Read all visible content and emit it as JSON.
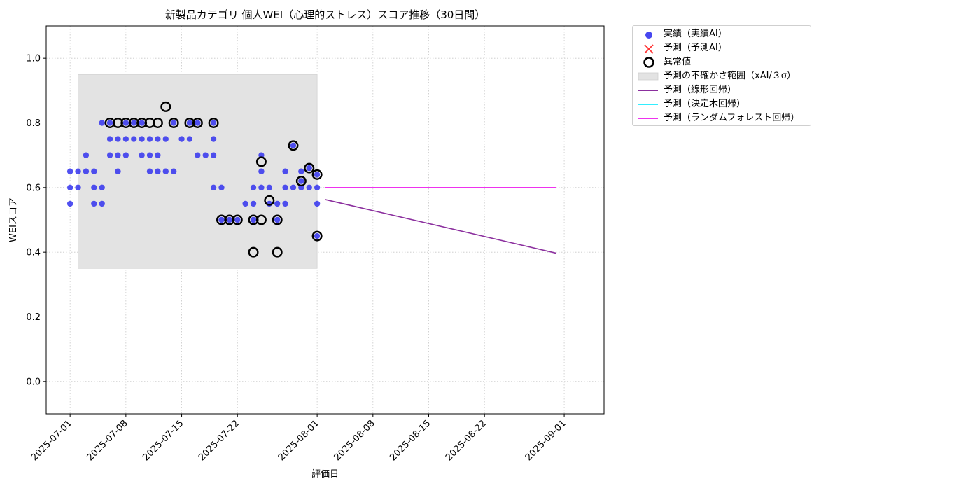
{
  "chart_data": {
    "type": "scatter",
    "title": "新製品カテゴリ 個人WEI（心理的ストレス）スコア推移（30日間）",
    "xlabel": "評価日",
    "ylabel": "WEIスコア",
    "xlim": [
      "2025-06-28",
      "2025-09-06"
    ],
    "ylim": [
      -0.1,
      1.1
    ],
    "x_ticks": [
      "2025-07-01",
      "2025-07-08",
      "2025-07-15",
      "2025-07-22",
      "2025-08-01",
      "2025-08-08",
      "2025-08-15",
      "2025-08-22",
      "2025-09-01"
    ],
    "y_ticks": [
      "0.0",
      "0.2",
      "0.4",
      "0.6",
      "0.8",
      "1.0"
    ],
    "grid": true,
    "grid_style": "dotted",
    "legend_position": "outside-right-top",
    "legend": [
      {
        "label": "実績（実績AI）",
        "kind": "marker-circle",
        "color": "#3333ee"
      },
      {
        "label": "予測（予測AI）",
        "kind": "marker-x",
        "color": "#ff3333"
      },
      {
        "label": "異常値",
        "kind": "marker-ring",
        "color": "#000000"
      },
      {
        "label": "予測の不確かさ範囲（xAI/３σ）",
        "kind": "patch",
        "color": "#e3e3e3"
      },
      {
        "label": "予測（線形回帰）",
        "kind": "line",
        "color": "#8b2f9e"
      },
      {
        "label": "予測（決定木回帰）",
        "kind": "line",
        "color": "#33eeff"
      },
      {
        "label": "予測（ランダムフォレスト回帰）",
        "kind": "line",
        "color": "#ee33ee"
      }
    ],
    "uncertainty_band": {
      "x_start": "2025-07-02",
      "x_end": "2025-08-01",
      "y_low": 0.35,
      "y_high": 0.95,
      "color": "#e3e3e3"
    },
    "series": [
      {
        "name": "実績（実績AI）",
        "type": "scatter",
        "color": "#3333ee",
        "points": [
          [
            "2025-07-01",
            0.6
          ],
          [
            "2025-07-01",
            0.55
          ],
          [
            "2025-07-01",
            0.65
          ],
          [
            "2025-07-02",
            0.65
          ],
          [
            "2025-07-02",
            0.6
          ],
          [
            "2025-07-03",
            0.65
          ],
          [
            "2025-07-03",
            0.7
          ],
          [
            "2025-07-04",
            0.6
          ],
          [
            "2025-07-04",
            0.55
          ],
          [
            "2025-07-04",
            0.65
          ],
          [
            "2025-07-05",
            0.6
          ],
          [
            "2025-07-05",
            0.55
          ],
          [
            "2025-07-05",
            0.8
          ],
          [
            "2025-07-06",
            0.7
          ],
          [
            "2025-07-06",
            0.75
          ],
          [
            "2025-07-06",
            0.8
          ],
          [
            "2025-07-07",
            0.75
          ],
          [
            "2025-07-07",
            0.7
          ],
          [
            "2025-07-07",
            0.65
          ],
          [
            "2025-07-08",
            0.75
          ],
          [
            "2025-07-08",
            0.8
          ],
          [
            "2025-07-08",
            0.7
          ],
          [
            "2025-07-09",
            0.75
          ],
          [
            "2025-07-09",
            0.8
          ],
          [
            "2025-07-10",
            0.8
          ],
          [
            "2025-07-10",
            0.75
          ],
          [
            "2025-07-10",
            0.7
          ],
          [
            "2025-07-11",
            0.65
          ],
          [
            "2025-07-11",
            0.75
          ],
          [
            "2025-07-11",
            0.7
          ],
          [
            "2025-07-12",
            0.7
          ],
          [
            "2025-07-12",
            0.75
          ],
          [
            "2025-07-12",
            0.65
          ],
          [
            "2025-07-13",
            0.75
          ],
          [
            "2025-07-13",
            0.65
          ],
          [
            "2025-07-14",
            0.8
          ],
          [
            "2025-07-14",
            0.65
          ],
          [
            "2025-07-15",
            0.75
          ],
          [
            "2025-07-16",
            0.8
          ],
          [
            "2025-07-16",
            0.75
          ],
          [
            "2025-07-17",
            0.7
          ],
          [
            "2025-07-17",
            0.8
          ],
          [
            "2025-07-18",
            0.7
          ],
          [
            "2025-07-19",
            0.75
          ],
          [
            "2025-07-19",
            0.7
          ],
          [
            "2025-07-19",
            0.6
          ],
          [
            "2025-07-19",
            0.8
          ],
          [
            "2025-07-20",
            0.5
          ],
          [
            "2025-07-20",
            0.6
          ],
          [
            "2025-07-21",
            0.5
          ],
          [
            "2025-07-22",
            0.5
          ],
          [
            "2025-07-23",
            0.55
          ],
          [
            "2025-07-24",
            0.6
          ],
          [
            "2025-07-24",
            0.55
          ],
          [
            "2025-07-24",
            0.5
          ],
          [
            "2025-07-25",
            0.65
          ],
          [
            "2025-07-25",
            0.6
          ],
          [
            "2025-07-25",
            0.7
          ],
          [
            "2025-07-26",
            0.6
          ],
          [
            "2025-07-26",
            0.55
          ],
          [
            "2025-07-27",
            0.5
          ],
          [
            "2025-07-27",
            0.55
          ],
          [
            "2025-07-28",
            0.6
          ],
          [
            "2025-07-28",
            0.65
          ],
          [
            "2025-07-28",
            0.55
          ],
          [
            "2025-07-29",
            0.6
          ],
          [
            "2025-07-29",
            0.73
          ],
          [
            "2025-07-30",
            0.6
          ],
          [
            "2025-07-30",
            0.65
          ],
          [
            "2025-07-30",
            0.62
          ],
          [
            "2025-07-31",
            0.6
          ],
          [
            "2025-07-31",
            0.66
          ],
          [
            "2025-08-01",
            0.6
          ],
          [
            "2025-08-01",
            0.55
          ],
          [
            "2025-08-01",
            0.64
          ],
          [
            "2025-08-01",
            0.45
          ]
        ]
      },
      {
        "name": "異常値",
        "type": "ring",
        "color": "#000000",
        "points": [
          [
            "2025-07-06",
            0.8
          ],
          [
            "2025-07-07",
            0.8
          ],
          [
            "2025-07-08",
            0.8
          ],
          [
            "2025-07-09",
            0.8
          ],
          [
            "2025-07-10",
            0.8
          ],
          [
            "2025-07-11",
            0.8
          ],
          [
            "2025-07-12",
            0.8
          ],
          [
            "2025-07-13",
            0.85
          ],
          [
            "2025-07-14",
            0.8
          ],
          [
            "2025-07-16",
            0.8
          ],
          [
            "2025-07-17",
            0.8
          ],
          [
            "2025-07-19",
            0.8
          ],
          [
            "2025-07-20",
            0.5
          ],
          [
            "2025-07-21",
            0.5
          ],
          [
            "2025-07-22",
            0.5
          ],
          [
            "2025-07-24",
            0.5
          ],
          [
            "2025-07-24",
            0.4
          ],
          [
            "2025-07-25",
            0.5
          ],
          [
            "2025-07-25",
            0.68
          ],
          [
            "2025-07-26",
            0.56
          ],
          [
            "2025-07-27",
            0.5
          ],
          [
            "2025-07-27",
            0.4
          ],
          [
            "2025-07-29",
            0.73
          ],
          [
            "2025-07-30",
            0.62
          ],
          [
            "2025-07-31",
            0.66
          ],
          [
            "2025-08-01",
            0.64
          ],
          [
            "2025-08-01",
            0.45
          ]
        ]
      },
      {
        "name": "予測（線形回帰）",
        "type": "line",
        "color": "#8b2f9e",
        "points": [
          [
            "2025-08-02",
            0.563
          ],
          [
            "2025-08-31",
            0.397
          ]
        ]
      },
      {
        "name": "予測（決定木回帰）",
        "type": "line",
        "color": "#33eeff",
        "points": [
          [
            "2025-08-02",
            0.6
          ],
          [
            "2025-08-31",
            0.6
          ]
        ]
      },
      {
        "name": "予測（ランダムフォレスト回帰）",
        "type": "line",
        "color": "#ee33ee",
        "points": [
          [
            "2025-08-02",
            0.6
          ],
          [
            "2025-08-31",
            0.6
          ]
        ]
      }
    ]
  }
}
